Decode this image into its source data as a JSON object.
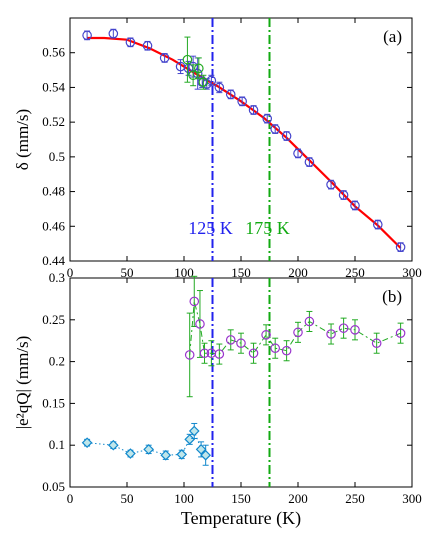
{
  "chart_data": [
    {
      "type": "scatter",
      "panel_label": "(a)",
      "ylabel": "δ (mm/s)",
      "xlim": [
        0,
        300
      ],
      "ylim": [
        0.44,
        0.58
      ],
      "x_ticks": [
        0,
        50,
        100,
        150,
        200,
        250,
        300
      ],
      "y_ticks": [
        0.44,
        0.46,
        0.48,
        0.5,
        0.52,
        0.54,
        0.56
      ],
      "y_tick_labels": [
        "0.44",
        "0.46",
        "0.48",
        "0.5",
        "0.52",
        "0.54",
        "0.56"
      ],
      "grid": false,
      "series": [
        {
          "color": "#4444cc",
          "marker": "circle",
          "points": [
            {
              "x": 15,
              "y": 0.57,
              "err": 0.0025
            },
            {
              "x": 38,
              "y": 0.571,
              "err": 0.0025
            },
            {
              "x": 53,
              "y": 0.566,
              "err": 0.0025
            },
            {
              "x": 68,
              "y": 0.564,
              "err": 0.0025
            },
            {
              "x": 83,
              "y": 0.557,
              "err": 0.0025
            },
            {
              "x": 97,
              "y": 0.552,
              "err": 0.004
            },
            {
              "x": 104,
              "y": 0.551,
              "err": 0.004
            },
            {
              "x": 108,
              "y": 0.552,
              "err": 0.006
            },
            {
              "x": 112,
              "y": 0.548,
              "err": 0.009
            },
            {
              "x": 116,
              "y": 0.543,
              "err": 0.003
            },
            {
              "x": 120,
              "y": 0.542,
              "err": 0.003
            },
            {
              "x": 124,
              "y": 0.544,
              "err": 0.003
            },
            {
              "x": 131,
              "y": 0.54,
              "err": 0.003
            },
            {
              "x": 141,
              "y": 0.536,
              "err": 0.0025
            },
            {
              "x": 151,
              "y": 0.532,
              "err": 0.0025
            },
            {
              "x": 161,
              "y": 0.527,
              "err": 0.0025
            },
            {
              "x": 173,
              "y": 0.522,
              "err": 0.0025
            },
            {
              "x": 180,
              "y": 0.516,
              "err": 0.0025
            },
            {
              "x": 190,
              "y": 0.512,
              "err": 0.0025
            },
            {
              "x": 200,
              "y": 0.502,
              "err": 0.0025
            },
            {
              "x": 210,
              "y": 0.497,
              "err": 0.0025
            },
            {
              "x": 229,
              "y": 0.484,
              "err": 0.0025
            },
            {
              "x": 240,
              "y": 0.478,
              "err": 0.0025
            },
            {
              "x": 250,
              "y": 0.472,
              "err": 0.0025
            },
            {
              "x": 270,
              "y": 0.461,
              "err": 0.0025
            },
            {
              "x": 290,
              "y": 0.448,
              "err": 0.0025
            }
          ]
        },
        {
          "color": "#22aa22",
          "marker": "circle",
          "points": [
            {
              "x": 103,
              "y": 0.556,
              "err": 0.013
            },
            {
              "x": 108,
              "y": 0.547,
              "err": 0.006
            },
            {
              "x": 113,
              "y": 0.551,
              "err": 0.006
            },
            {
              "x": 117,
              "y": 0.543,
              "err": 0.004
            }
          ]
        }
      ],
      "fit_curve": {
        "color": "#ff0000",
        "points": [
          [
            15,
            0.5685
          ],
          [
            30,
            0.5685
          ],
          [
            50,
            0.5675
          ],
          [
            70,
            0.5625
          ],
          [
            90,
            0.556
          ],
          [
            110,
            0.548
          ],
          [
            130,
            0.5405
          ],
          [
            150,
            0.532
          ],
          [
            170,
            0.5225
          ],
          [
            190,
            0.511
          ],
          [
            210,
            0.498
          ],
          [
            230,
            0.485
          ],
          [
            250,
            0.4715
          ],
          [
            270,
            0.4605
          ],
          [
            290,
            0.4475
          ]
        ]
      },
      "vlines": [
        {
          "x": 125,
          "label": "125 K",
          "color": "#2222ee"
        },
        {
          "x": 175,
          "label": "175 K",
          "color": "#11aa11"
        }
      ]
    },
    {
      "type": "scatter",
      "panel_label": "(b)",
      "xlabel": "Temperature (K)",
      "ylabel": "|e²qQ| (mm/s)",
      "xlim": [
        0,
        300
      ],
      "ylim": [
        0.05,
        0.3
      ],
      "x_ticks": [
        0,
        50,
        100,
        150,
        200,
        250,
        300
      ],
      "y_ticks": [
        0.05,
        0.1,
        0.15,
        0.2,
        0.25,
        0.3
      ],
      "y_tick_labels": [
        "0.05",
        "0.1",
        "0.15",
        "0.2",
        "0.25",
        "0.3"
      ],
      "grid": false,
      "series": [
        {
          "color": "#1188cc",
          "marker": "diamond",
          "line": "dotted",
          "points": [
            {
              "x": 15,
              "y": 0.103,
              "err": 0.004
            },
            {
              "x": 38,
              "y": 0.1,
              "err": 0.004
            },
            {
              "x": 53,
              "y": 0.09,
              "err": 0.004
            },
            {
              "x": 69,
              "y": 0.095,
              "err": 0.005
            },
            {
              "x": 84,
              "y": 0.088,
              "err": 0.005
            },
            {
              "x": 98,
              "y": 0.089,
              "err": 0.005
            },
            {
              "x": 105,
              "y": 0.107,
              "err": 0.006
            },
            {
              "x": 109,
              "y": 0.117,
              "err": 0.009
            },
            {
              "x": 115,
              "y": 0.095,
              "err": 0.009
            },
            {
              "x": 119,
              "y": 0.088,
              "err": 0.012
            }
          ]
        },
        {
          "color": "#9933cc",
          "marker": "circle",
          "line": "dashdot",
          "line_color": "#22aa22",
          "points": [
            {
              "x": 105,
              "y": 0.208,
              "err": 0.05
            },
            {
              "x": 109,
              "y": 0.272,
              "err": 0.03
            },
            {
              "x": 114,
              "y": 0.245,
              "err": 0.04
            },
            {
              "x": 118,
              "y": 0.21,
              "err": 0.012
            },
            {
              "x": 124,
              "y": 0.21,
              "err": 0.015
            },
            {
              "x": 131,
              "y": 0.209,
              "err": 0.012
            },
            {
              "x": 141,
              "y": 0.226,
              "err": 0.012
            },
            {
              "x": 150,
              "y": 0.222,
              "err": 0.012
            },
            {
              "x": 161,
              "y": 0.21,
              "err": 0.012
            },
            {
              "x": 172,
              "y": 0.232,
              "err": 0.012
            },
            {
              "x": 180,
              "y": 0.216,
              "err": 0.012
            },
            {
              "x": 190,
              "y": 0.213,
              "err": 0.012
            },
            {
              "x": 200,
              "y": 0.235,
              "err": 0.012
            },
            {
              "x": 210,
              "y": 0.248,
              "err": 0.012
            },
            {
              "x": 229,
              "y": 0.233,
              "err": 0.012
            },
            {
              "x": 240,
              "y": 0.24,
              "err": 0.012
            },
            {
              "x": 250,
              "y": 0.238,
              "err": 0.012
            },
            {
              "x": 269,
              "y": 0.222,
              "err": 0.012
            },
            {
              "x": 290,
              "y": 0.234,
              "err": 0.012
            }
          ]
        }
      ],
      "vlines": [
        {
          "x": 125,
          "color": "#2222ee"
        },
        {
          "x": 175,
          "color": "#11aa11"
        }
      ]
    }
  ]
}
